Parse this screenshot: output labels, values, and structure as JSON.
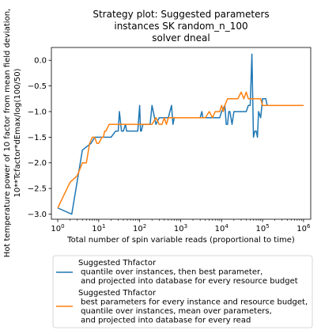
{
  "chart_data": {
    "type": "line",
    "title": [
      "Strategy plot: Suggested parameters",
      "instances SK random_n_100",
      "solver dneal"
    ],
    "xlabel": "Total number of spin variable reads (proportional to time)",
    "ylabel": [
      "Hot temperature power of 10 factor from mean field deviation,",
      "10**Tcfactor*dEmax/log(100/50)"
    ],
    "xscale": "log",
    "xlim": [
      0.7,
      1500000
    ],
    "ylim": [
      -3.1,
      0.25
    ],
    "xticks": [
      {
        "base": "10",
        "exp": "0",
        "value": 1
      },
      {
        "base": "10",
        "exp": "1",
        "value": 10
      },
      {
        "base": "10",
        "exp": "2",
        "value": 100
      },
      {
        "base": "10",
        "exp": "3",
        "value": 1000
      },
      {
        "base": "10",
        "exp": "4",
        "value": 10000
      },
      {
        "base": "10",
        "exp": "5",
        "value": 100000
      },
      {
        "base": "10",
        "exp": "6",
        "value": 1000000
      }
    ],
    "yticks": [
      {
        "label": "0.0",
        "value": 0
      },
      {
        "label": "−0.5",
        "value": -0.5
      },
      {
        "label": "−1.0",
        "value": -1
      },
      {
        "label": "−1.5",
        "value": -1.5
      },
      {
        "label": "−2.0",
        "value": -2
      },
      {
        "label": "−2.5",
        "value": -2.5
      },
      {
        "label": "−3.0",
        "value": -3
      }
    ],
    "grid": false,
    "legend_position": "below",
    "series": [
      {
        "name": "Suggested Thfactor\n quantile over instances, then best parameter,\n and projected into database for every resource budget",
        "color": "#1f77b4",
        "x": [
          1,
          2.2,
          4,
          6.5,
          8,
          11,
          13,
          15,
          20,
          26,
          30,
          32,
          36,
          40,
          45,
          48,
          55,
          70,
          90,
          100,
          105,
          110,
          120,
          130,
          150,
          180,
          200,
          250,
          300,
          400,
          500,
          600,
          650,
          700,
          800,
          900,
          1000,
          1200,
          1400,
          1600,
          2000,
          2500,
          3000,
          3300,
          3500,
          4000,
          5000,
          6000,
          7000,
          8000,
          9000,
          10000,
          12000,
          13000,
          14000,
          15000,
          16000,
          18000,
          20000,
          22000,
          25000,
          30000,
          35000,
          40000,
          45000,
          50000,
          55000,
          60000,
          65000,
          70000,
          75000,
          80000,
          90000,
          100000,
          110000,
          120000,
          130000,
          150000,
          170000,
          200000,
          300000,
          500000,
          700000,
          1000000
        ],
        "y": [
          -2.88,
          -3.0,
          -1.75,
          -1.62,
          -1.5,
          -1.5,
          -1.5,
          -1.5,
          -1.5,
          -1.38,
          -1.38,
          -1.0,
          -1.38,
          -1.38,
          -1.25,
          -1.38,
          -1.38,
          -1.38,
          -1.38,
          -0.88,
          -1.38,
          -1.38,
          -1.25,
          -1.25,
          -1.25,
          -1.25,
          -0.88,
          -1.25,
          -1.12,
          -1.12,
          -1.12,
          -0.88,
          -1.25,
          -1.12,
          -1.12,
          -1.12,
          -1.12,
          -1.12,
          -1.12,
          -1.12,
          -1.12,
          -1.12,
          -1.12,
          -1.0,
          -1.12,
          -1.12,
          -1.12,
          -1.12,
          -1.12,
          -1.12,
          -1.12,
          -1.0,
          -0.88,
          -1.25,
          -1.25,
          -1.0,
          -1.0,
          -1.25,
          -1.0,
          -1.0,
          -1.0,
          -1.0,
          -1.0,
          -1.0,
          -0.88,
          -0.88,
          0.12,
          -1.5,
          -1.38,
          -1.38,
          -1.5,
          -1.0,
          -1.12,
          -0.75,
          -0.75,
          -0.75,
          -0.88,
          -0.88,
          -0.88,
          -0.88,
          -0.88,
          -0.88,
          -0.88,
          -0.88
        ]
      },
      {
        "name": "Suggested Thfactor\n best parameters for every instance and resource budget,\n quantile over instances, mean over parameters,\n and projected into database for every read",
        "color": "#ff7f0e",
        "x": [
          1,
          2,
          3,
          4,
          5,
          6,
          7,
          8,
          9,
          10,
          12,
          13,
          14,
          15,
          18,
          20,
          25,
          30,
          40,
          50,
          60,
          80,
          100,
          120,
          150,
          200,
          250,
          300,
          350,
          400,
          450,
          500,
          600,
          700,
          800,
          900,
          1000,
          1200,
          1500,
          2000,
          2500,
          3000,
          3500,
          4000,
          5000,
          6000,
          7000,
          8000,
          9000,
          10000,
          11000,
          12000,
          14000,
          16000,
          18000,
          20000,
          25000,
          30000,
          35000,
          40000,
          45000,
          50000,
          60000,
          70000,
          80000,
          90000,
          100000,
          150000,
          200000,
          500000,
          1000000
        ],
        "y": [
          -2.88,
          -2.38,
          -2.25,
          -2.0,
          -2.0,
          -1.62,
          -1.5,
          -1.5,
          -1.62,
          -1.62,
          -1.5,
          -1.5,
          -1.38,
          -1.38,
          -1.25,
          -1.25,
          -1.25,
          -1.25,
          -1.25,
          -1.25,
          -1.25,
          -1.25,
          -1.25,
          -1.25,
          -1.25,
          -1.25,
          -1.12,
          -1.25,
          -1.25,
          -1.12,
          -1.25,
          -1.12,
          -1.12,
          -1.12,
          -1.12,
          -1.12,
          -1.12,
          -1.12,
          -1.12,
          -1.12,
          -1.12,
          -1.12,
          -1.12,
          -1.12,
          -1.0,
          -1.12,
          -1.0,
          -1.0,
          -1.0,
          -0.88,
          -1.0,
          -0.88,
          -0.75,
          -0.75,
          -0.75,
          -0.75,
          -0.75,
          -0.62,
          -0.75,
          -0.62,
          -0.75,
          -0.75,
          -0.75,
          -0.75,
          -0.75,
          -0.75,
          -0.88,
          -0.88,
          -0.88,
          -0.88,
          -0.88
        ]
      }
    ]
  }
}
